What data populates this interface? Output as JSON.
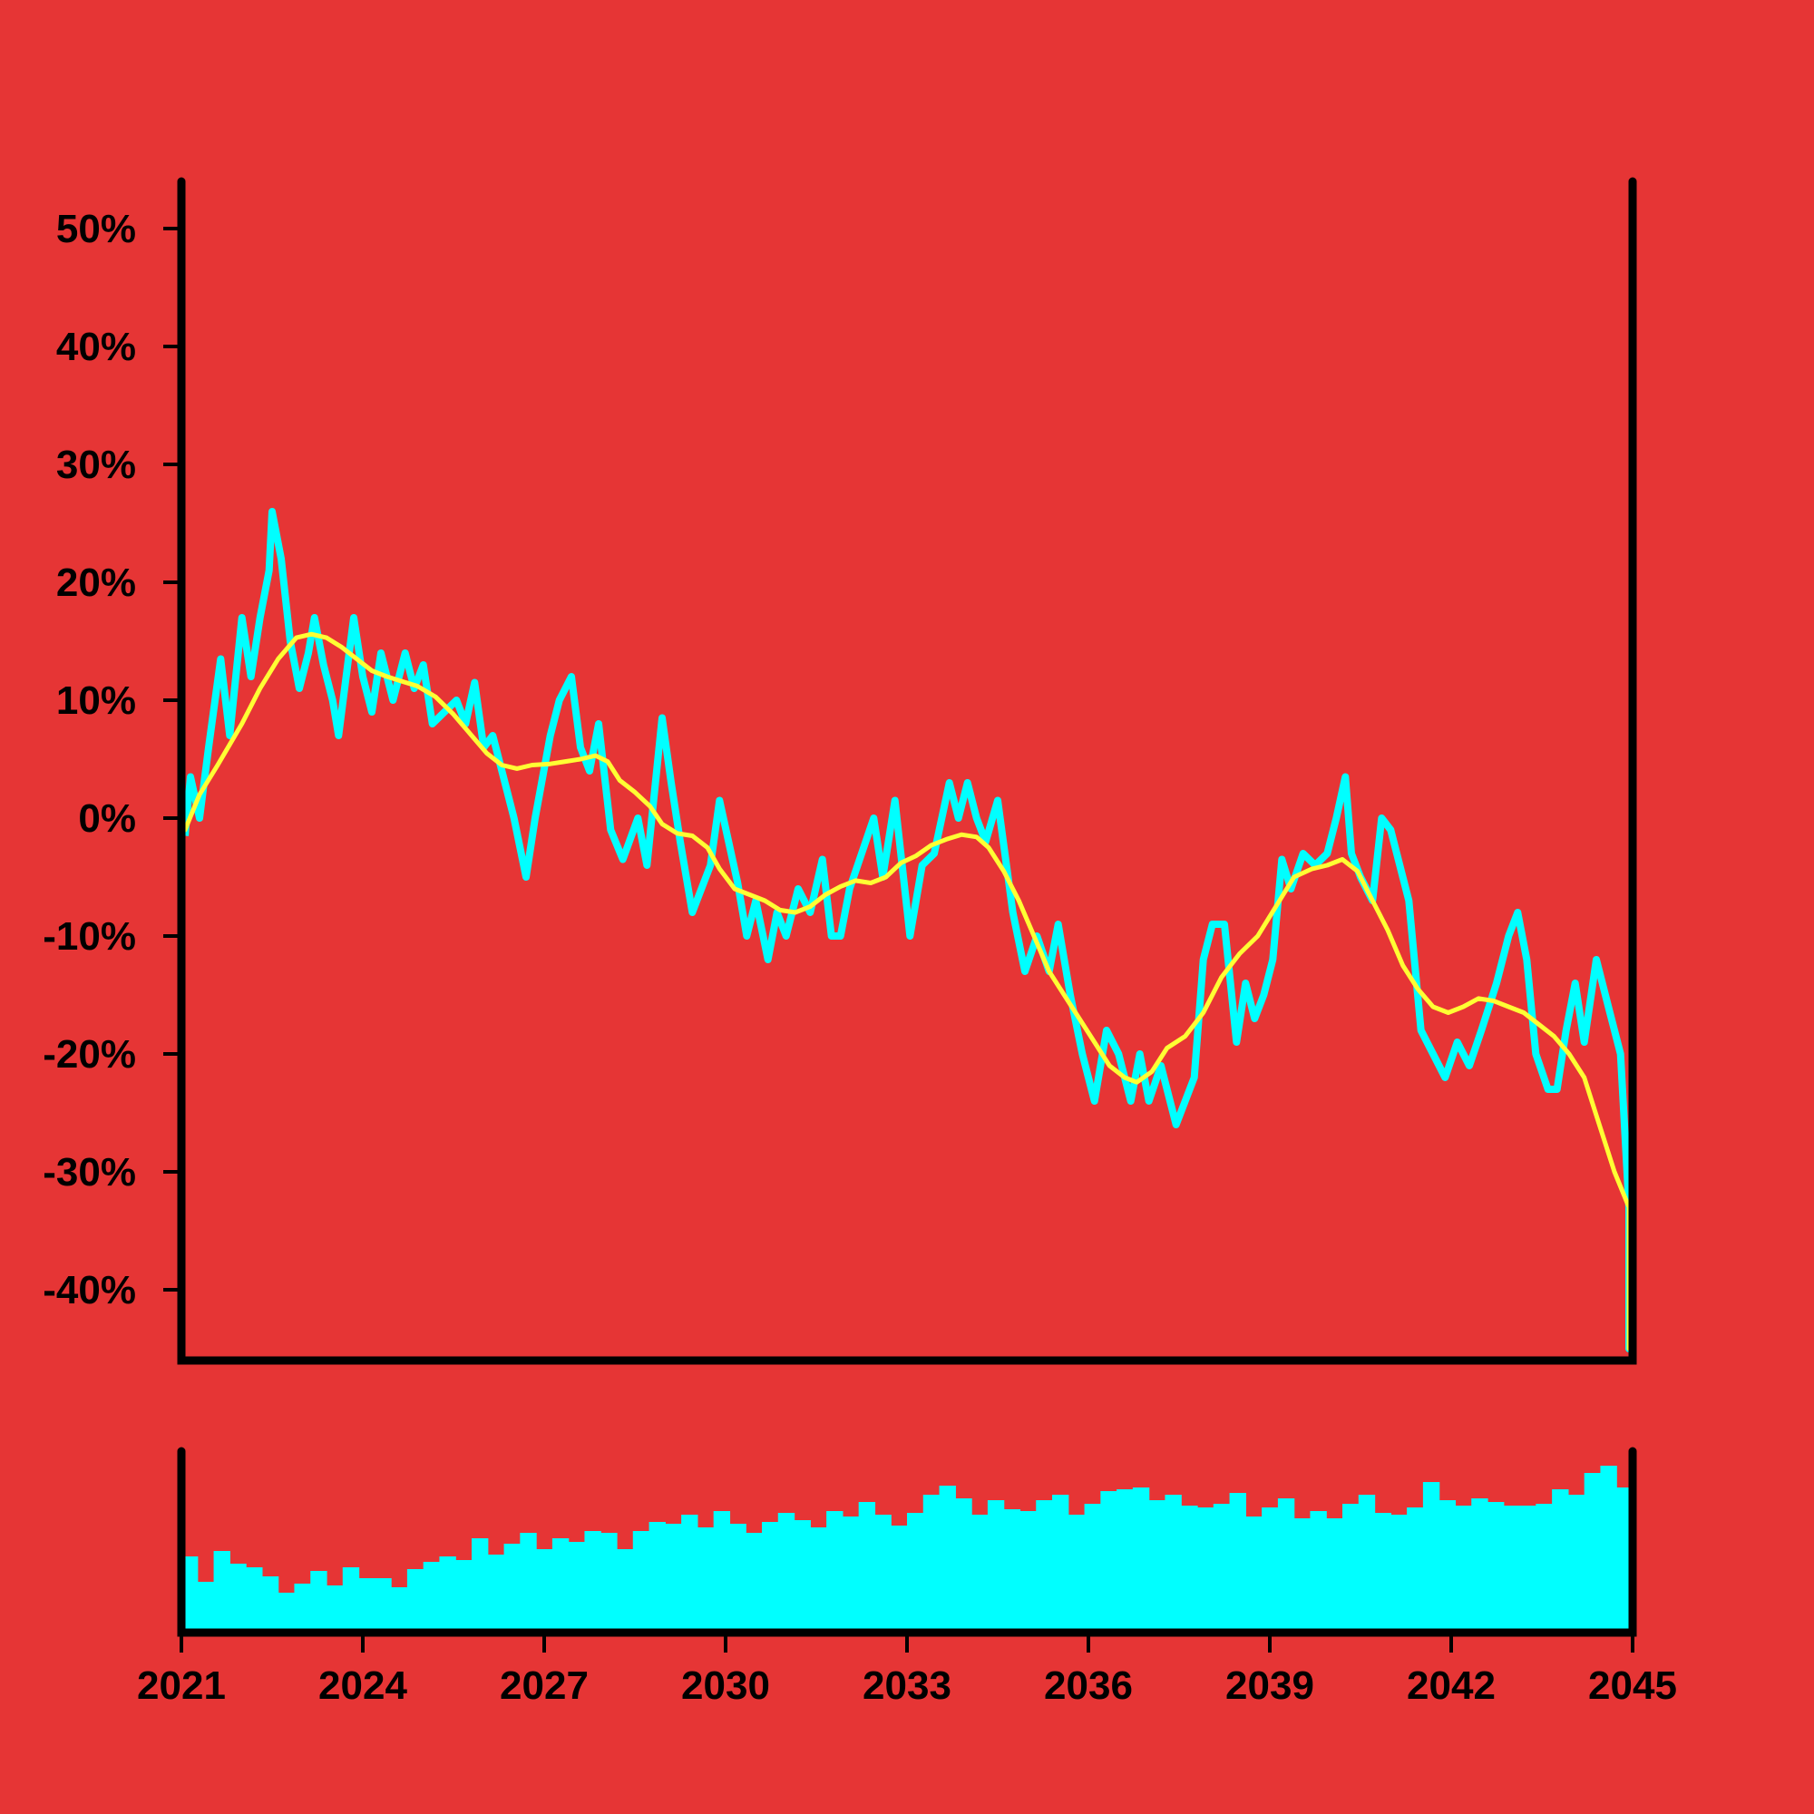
{
  "chart_data": {
    "type": "line",
    "title": "",
    "xlabel": "",
    "ylabel": "",
    "x_range": [
      2021,
      2045
    ],
    "x_ticks": [
      "2021",
      "2024",
      "2027",
      "2030",
      "2033",
      "2036",
      "2039",
      "2042",
      "2045"
    ],
    "y_range": [
      -46,
      54
    ],
    "y_ticks": [
      50,
      40,
      30,
      20,
      10,
      0,
      -10,
      -20,
      -30,
      -40
    ],
    "y_tick_labels": [
      "50%",
      "40%",
      "30%",
      "20%",
      "10%",
      "0%",
      "-10%",
      "-20%",
      "-30%",
      "-40%"
    ],
    "grid": false,
    "legend": "none",
    "colors": {
      "background": "#e63535",
      "series": "#00ffff",
      "moving_average": "#ffff33",
      "axes": "#000000",
      "volume": "#00ffff"
    },
    "series": [
      {
        "role": "series",
        "points": [
          [
            2021.0,
            -1.5
          ],
          [
            2021.15,
            3.5
          ],
          [
            2021.3,
            0
          ],
          [
            2021.45,
            6
          ],
          [
            2021.65,
            13.5
          ],
          [
            2021.8,
            7
          ],
          [
            2022.0,
            17
          ],
          [
            2022.15,
            12
          ],
          [
            2022.3,
            17
          ],
          [
            2022.45,
            21
          ],
          [
            2022.5,
            26
          ],
          [
            2022.65,
            22
          ],
          [
            2022.8,
            15
          ],
          [
            2022.95,
            11
          ],
          [
            2023.1,
            14
          ],
          [
            2023.2,
            17
          ],
          [
            2023.35,
            13
          ],
          [
            2023.5,
            10
          ],
          [
            2023.6,
            7
          ],
          [
            2023.75,
            13
          ],
          [
            2023.85,
            17
          ],
          [
            2024.0,
            12
          ],
          [
            2024.15,
            9
          ],
          [
            2024.3,
            14
          ],
          [
            2024.5,
            10
          ],
          [
            2024.7,
            14
          ],
          [
            2024.85,
            11
          ],
          [
            2025.0,
            13
          ],
          [
            2025.15,
            8
          ],
          [
            2025.35,
            9
          ],
          [
            2025.55,
            10
          ],
          [
            2025.7,
            8
          ],
          [
            2025.85,
            11.5
          ],
          [
            2026.0,
            6
          ],
          [
            2026.15,
            7
          ],
          [
            2026.35,
            3
          ],
          [
            2026.5,
            0
          ],
          [
            2026.7,
            -5
          ],
          [
            2026.85,
            0
          ],
          [
            2027.1,
            7
          ],
          [
            2027.25,
            10
          ],
          [
            2027.45,
            12
          ],
          [
            2027.6,
            6
          ],
          [
            2027.75,
            4
          ],
          [
            2027.9,
            8
          ],
          [
            2028.1,
            -1
          ],
          [
            2028.3,
            -3.5
          ],
          [
            2028.55,
            0
          ],
          [
            2028.7,
            -4
          ],
          [
            2028.95,
            8.5
          ],
          [
            2029.1,
            3
          ],
          [
            2029.25,
            -2
          ],
          [
            2029.45,
            -8
          ],
          [
            2029.6,
            -6
          ],
          [
            2029.75,
            -4
          ],
          [
            2029.9,
            1.5
          ],
          [
            2030.05,
            -2
          ],
          [
            2030.2,
            -5.5
          ],
          [
            2030.35,
            -10
          ],
          [
            2030.5,
            -7
          ],
          [
            2030.7,
            -12
          ],
          [
            2030.85,
            -8
          ],
          [
            2031.0,
            -10
          ],
          [
            2031.2,
            -6
          ],
          [
            2031.4,
            -8
          ],
          [
            2031.6,
            -3.5
          ],
          [
            2031.75,
            -10
          ],
          [
            2031.9,
            -10
          ],
          [
            2032.05,
            -6
          ],
          [
            2032.25,
            -3
          ],
          [
            2032.45,
            0
          ],
          [
            2032.6,
            -5
          ],
          [
            2032.8,
            1.5
          ],
          [
            2033.05,
            -10
          ],
          [
            2033.25,
            -4
          ],
          [
            2033.45,
            -3
          ],
          [
            2033.7,
            3
          ],
          [
            2033.85,
            0
          ],
          [
            2034.0,
            3
          ],
          [
            2034.15,
            0
          ],
          [
            2034.3,
            -2
          ],
          [
            2034.5,
            1.5
          ],
          [
            2034.75,
            -8
          ],
          [
            2034.95,
            -13
          ],
          [
            2035.15,
            -10
          ],
          [
            2035.35,
            -13
          ],
          [
            2035.5,
            -9
          ],
          [
            2035.7,
            -15
          ],
          [
            2035.9,
            -20
          ],
          [
            2036.1,
            -24
          ],
          [
            2036.3,
            -18
          ],
          [
            2036.5,
            -20
          ],
          [
            2036.7,
            -24
          ],
          [
            2036.85,
            -20
          ],
          [
            2037.0,
            -24
          ],
          [
            2037.2,
            -21
          ],
          [
            2037.45,
            -26
          ],
          [
            2037.6,
            -24
          ],
          [
            2037.75,
            -22
          ],
          [
            2037.9,
            -12
          ],
          [
            2038.05,
            -9
          ],
          [
            2038.25,
            -9
          ],
          [
            2038.45,
            -19
          ],
          [
            2038.6,
            -14
          ],
          [
            2038.75,
            -17
          ],
          [
            2038.9,
            -15
          ],
          [
            2039.05,
            -12
          ],
          [
            2039.2,
            -3.5
          ],
          [
            2039.35,
            -6
          ],
          [
            2039.55,
            -3
          ],
          [
            2039.75,
            -4
          ],
          [
            2039.95,
            -3
          ],
          [
            2040.1,
            0
          ],
          [
            2040.25,
            3.5
          ],
          [
            2040.35,
            -3
          ],
          [
            2040.5,
            -5
          ],
          [
            2040.7,
            -7
          ],
          [
            2040.85,
            0
          ],
          [
            2041.0,
            -1
          ],
          [
            2041.15,
            -4
          ],
          [
            2041.3,
            -7
          ],
          [
            2041.5,
            -18
          ],
          [
            2041.7,
            -20
          ],
          [
            2041.9,
            -22
          ],
          [
            2042.1,
            -19
          ],
          [
            2042.3,
            -21
          ],
          [
            2042.5,
            -18
          ],
          [
            2042.75,
            -14
          ],
          [
            2042.95,
            -10
          ],
          [
            2043.1,
            -8
          ],
          [
            2043.25,
            -12
          ],
          [
            2043.4,
            -20
          ],
          [
            2043.6,
            -23
          ],
          [
            2043.75,
            -23
          ],
          [
            2043.9,
            -18
          ],
          [
            2044.05,
            -14
          ],
          [
            2044.2,
            -19
          ],
          [
            2044.4,
            -12
          ],
          [
            2044.6,
            -16
          ],
          [
            2044.8,
            -20
          ],
          [
            2045.0,
            -33
          ],
          [
            2045.25,
            -36
          ],
          [
            2045.45,
            -45
          ],
          [
            2045.65,
            -45
          ],
          [
            2045.8,
            -40
          ],
          [
            2045.95,
            -45
          ]
        ]
      },
      {
        "role": "moving_average",
        "points": [
          [
            2021.0,
            -1
          ],
          [
            2021.3,
            2
          ],
          [
            2021.6,
            4.5
          ],
          [
            2022.0,
            8
          ],
          [
            2022.3,
            11
          ],
          [
            2022.6,
            13.5
          ],
          [
            2022.9,
            15.3
          ],
          [
            2023.15,
            15.6
          ],
          [
            2023.4,
            15.3
          ],
          [
            2023.65,
            14.5
          ],
          [
            2023.9,
            13.5
          ],
          [
            2024.15,
            12.5
          ],
          [
            2024.4,
            12
          ],
          [
            2024.65,
            11.6
          ],
          [
            2024.9,
            11.2
          ],
          [
            2025.2,
            10.3
          ],
          [
            2025.5,
            8.8
          ],
          [
            2025.8,
            7
          ],
          [
            2026.05,
            5.5
          ],
          [
            2026.3,
            4.5
          ],
          [
            2026.55,
            4.2
          ],
          [
            2026.8,
            4.5
          ],
          [
            2027.1,
            4.6
          ],
          [
            2027.35,
            4.8
          ],
          [
            2027.6,
            5
          ],
          [
            2027.85,
            5.3
          ],
          [
            2028.05,
            4.8
          ],
          [
            2028.25,
            3.2
          ],
          [
            2028.5,
            2.2
          ],
          [
            2028.75,
            1
          ],
          [
            2028.95,
            -0.5
          ],
          [
            2029.2,
            -1.3
          ],
          [
            2029.45,
            -1.5
          ],
          [
            2029.7,
            -2.5
          ],
          [
            2029.9,
            -4.3
          ],
          [
            2030.15,
            -6
          ],
          [
            2030.4,
            -6.5
          ],
          [
            2030.65,
            -7
          ],
          [
            2030.9,
            -7.8
          ],
          [
            2031.15,
            -8
          ],
          [
            2031.4,
            -7.5
          ],
          [
            2031.65,
            -6.5
          ],
          [
            2031.9,
            -5.8
          ],
          [
            2032.15,
            -5.3
          ],
          [
            2032.4,
            -5.5
          ],
          [
            2032.65,
            -5
          ],
          [
            2032.9,
            -3.8
          ],
          [
            2033.15,
            -3.2
          ],
          [
            2033.4,
            -2.3
          ],
          [
            2033.65,
            -1.8
          ],
          [
            2033.9,
            -1.4
          ],
          [
            2034.15,
            -1.6
          ],
          [
            2034.35,
            -2.5
          ],
          [
            2034.6,
            -4.5
          ],
          [
            2034.85,
            -7
          ],
          [
            2035.1,
            -10
          ],
          [
            2035.35,
            -13
          ],
          [
            2035.6,
            -15
          ],
          [
            2035.85,
            -17
          ],
          [
            2036.1,
            -19
          ],
          [
            2036.35,
            -21
          ],
          [
            2036.6,
            -22
          ],
          [
            2036.8,
            -22.4
          ],
          [
            2037.05,
            -21.5
          ],
          [
            2037.3,
            -19.5
          ],
          [
            2037.6,
            -18.5
          ],
          [
            2037.9,
            -16.5
          ],
          [
            2038.2,
            -13.5
          ],
          [
            2038.5,
            -11.5
          ],
          [
            2038.8,
            -10
          ],
          [
            2039.1,
            -7.5
          ],
          [
            2039.4,
            -5
          ],
          [
            2039.7,
            -4.3
          ],
          [
            2039.95,
            -4
          ],
          [
            2040.2,
            -3.5
          ],
          [
            2040.45,
            -4.5
          ],
          [
            2040.7,
            -7
          ],
          [
            2040.95,
            -9.5
          ],
          [
            2041.2,
            -12.5
          ],
          [
            2041.45,
            -14.5
          ],
          [
            2041.7,
            -16
          ],
          [
            2041.95,
            -16.5
          ],
          [
            2042.2,
            -16
          ],
          [
            2042.45,
            -15.3
          ],
          [
            2042.7,
            -15.5
          ],
          [
            2042.95,
            -16
          ],
          [
            2043.2,
            -16.5
          ],
          [
            2043.45,
            -17.5
          ],
          [
            2043.7,
            -18.5
          ],
          [
            2043.95,
            -20
          ],
          [
            2044.2,
            -22
          ],
          [
            2044.45,
            -26
          ],
          [
            2044.7,
            -30
          ],
          [
            2044.95,
            -33
          ],
          [
            2045.15,
            -36
          ],
          [
            2045.3,
            -40
          ],
          [
            2045.5,
            -45
          ]
        ]
      }
    ],
    "volume": {
      "x_range": [
        2021,
        2045
      ],
      "values": [
        0.42,
        0.28,
        0.45,
        0.38,
        0.36,
        0.31,
        0.22,
        0.27,
        0.34,
        0.26,
        0.36,
        0.3,
        0.3,
        0.25,
        0.35,
        0.39,
        0.42,
        0.4,
        0.52,
        0.43,
        0.49,
        0.55,
        0.46,
        0.52,
        0.5,
        0.56,
        0.55,
        0.46,
        0.56,
        0.61,
        0.6,
        0.65,
        0.58,
        0.67,
        0.6,
        0.55,
        0.61,
        0.66,
        0.62,
        0.58,
        0.67,
        0.64,
        0.72,
        0.65,
        0.59,
        0.66,
        0.76,
        0.81,
        0.74,
        0.65,
        0.73,
        0.68,
        0.67,
        0.73,
        0.76,
        0.65,
        0.71,
        0.78,
        0.79,
        0.8,
        0.73,
        0.76,
        0.7,
        0.69,
        0.71,
        0.77,
        0.64,
        0.69,
        0.74,
        0.63,
        0.67,
        0.63,
        0.71,
        0.76,
        0.66,
        0.65,
        0.69,
        0.83,
        0.73,
        0.7,
        0.74,
        0.72,
        0.7,
        0.7,
        0.71,
        0.79,
        0.76,
        0.88,
        0.92,
        0.8
      ]
    }
  }
}
